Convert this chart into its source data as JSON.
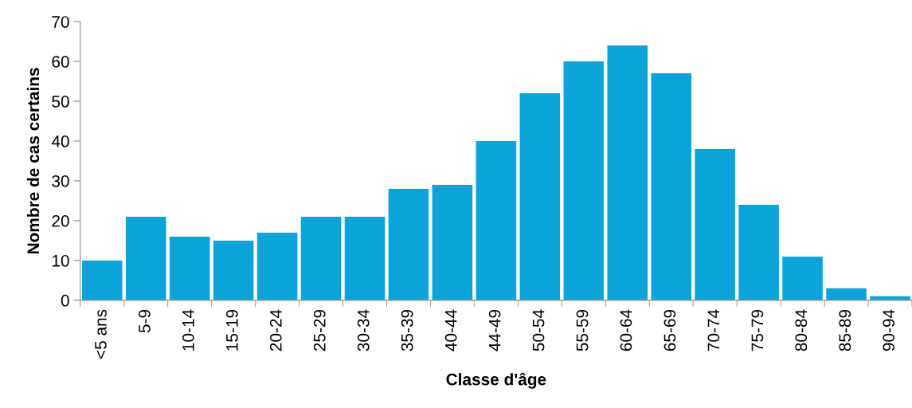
{
  "chart_data": {
    "type": "bar",
    "xlabel": "Classe d'âge",
    "ylabel": "Nombre de cas certains",
    "categories": [
      "<5 ans",
      "5-9",
      "10-14",
      "15-19",
      "20-24",
      "25-29",
      "30-34",
      "35-39",
      "40-44",
      "44-49",
      "50-54",
      "55-59",
      "60-64",
      "65-69",
      "70-74",
      "75-79",
      "80-84",
      "85-89",
      "90-94"
    ],
    "values": [
      10,
      21,
      16,
      15,
      17,
      21,
      21,
      28,
      29,
      40,
      52,
      60,
      64,
      57,
      38,
      24,
      11,
      3,
      1
    ],
    "color": "#0ba3da",
    "ylim": [
      0,
      70
    ],
    "yticks": [
      0,
      10,
      20,
      30,
      40,
      50,
      60,
      70
    ],
    "grid": false,
    "legend": false
  }
}
